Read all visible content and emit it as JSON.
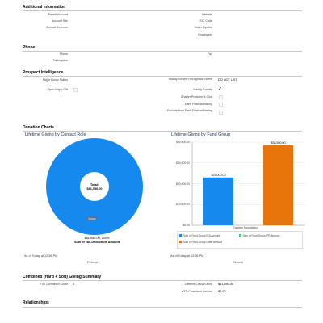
{
  "additional_info": {
    "header": "Additional Information",
    "left": [
      {
        "label": "Parent Account",
        "value": ""
      },
      {
        "label": "Account Site",
        "value": ""
      },
      {
        "label": "Annual Revenue",
        "value": ""
      }
    ],
    "right": [
      {
        "label": "Website",
        "value": ""
      },
      {
        "label": "SIC Code",
        "value": ""
      },
      {
        "label": "Ticker Symbol",
        "value": ""
      },
      {
        "label": "Employees",
        "value": ""
      }
    ]
  },
  "phone_section": {
    "header": "Phone",
    "phone_label": "Phone",
    "fax_label": "Fax",
    "description_label": "Description"
  },
  "prospect": {
    "header": "Prospect Intelligence",
    "major_donor_label": "Major Donor Status",
    "open_major_gift_label": "Open Major Gift",
    "right": [
      {
        "label": "Maddy Society Recognition Name",
        "value": "DO NOT LIST",
        "checkbox": false
      },
      {
        "label": "Maddy Society",
        "checked": true,
        "checkbox": true
      },
      {
        "label": "Charter President's Club",
        "checked": false,
        "checkbox": true
      },
      {
        "label": "Early Festival Mailing",
        "checked": false,
        "checkbox": true
      },
      {
        "label": "Exclude from Early Festival Mailing",
        "checked": false,
        "checkbox": true
      }
    ],
    "checkmark": "✓"
  },
  "donation_charts": {
    "header": "Donation Charts",
    "as_of": "As of Today at 12:56 PM",
    "refresh": "Refresh"
  },
  "chart_data": [
    {
      "type": "pie",
      "title": "Lifetime Giving by Contact Role",
      "center_label": "Total:",
      "center_value": "$61,550.00",
      "slices": [
        {
          "name": "Donor",
          "value": 61550,
          "percent": 100,
          "color": "#1589ee"
        }
      ],
      "slice_caption": "$61,550.00; 100%",
      "measure_label": "Sum of Tax-Deductible Amount"
    },
    {
      "type": "bar",
      "title": "Lifetime Giving by Fund Group",
      "categories": [
        "Eastern Foundation"
      ],
      "series": [
        {
          "name": "Sum of Fund Group ICA Amount",
          "values": [
            23000
          ],
          "label": "$23,000.00",
          "color": "#1589ee"
        },
        {
          "name": "Sum of Fund Group IPR Amount",
          "values": [
            0
          ],
          "label": "",
          "color": "#4bca81"
        },
        {
          "name": "Sum of Fund Group Other Amount",
          "values": [
            38550
          ],
          "label": "$38,550.00",
          "color": "#e8740c"
        }
      ],
      "ylim": [
        0,
        40000
      ],
      "yticks": [
        "$0.00",
        "$10,000.00",
        "$20,000.00",
        "$30,000.00",
        "$40,000.00"
      ],
      "ytick_values": [
        0,
        10000,
        20000,
        30000,
        40000
      ],
      "legend_placement": "bottom"
    }
  ],
  "combined": {
    "header": "Combined (Hard + Soft) Giving Summary",
    "ytd_count_label": "YTD Combined Count",
    "ytd_count_value": "0",
    "lifetime_label": "Lifetime Cash/In-Kind",
    "lifetime_value": "$61,550.00",
    "ytd_amount_label": "YTD Combined Amount",
    "ytd_amount_value": "$0.00"
  },
  "relationships": {
    "header": "Relationships"
  }
}
